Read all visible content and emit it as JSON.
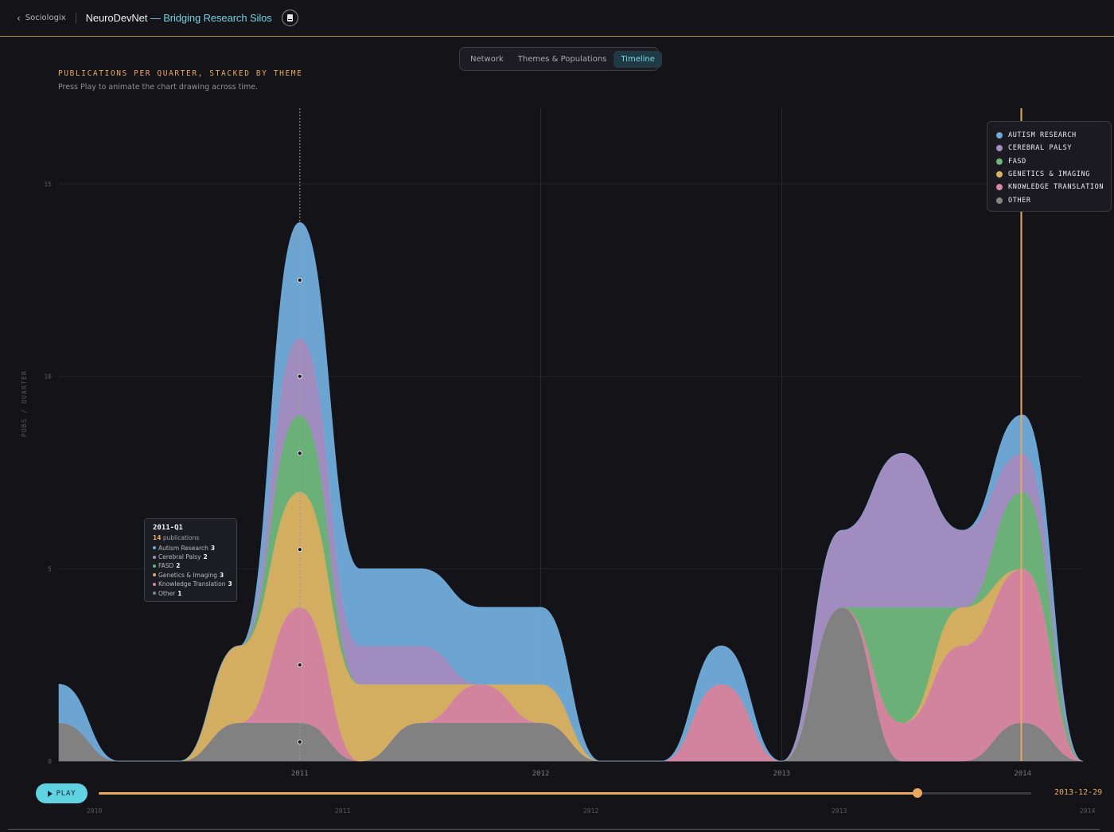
{
  "header": {
    "back_label": "Sociologix",
    "title_main": "NeuroDevNet",
    "title_sub": "— Bridging Research Silos"
  },
  "tabs": [
    {
      "label": "Network",
      "active": false
    },
    {
      "label": "Themes & Populations",
      "active": false
    },
    {
      "label": "Timeline",
      "active": true
    }
  ],
  "colors": {
    "autism": "#6fa8d6",
    "cerebral": "#a48fc4",
    "fasd": "#6cb47a",
    "genetics": "#d8b162",
    "knowledge": "#d687a2",
    "other": "#848484",
    "accent": "#e8a95f",
    "cyan": "#5fd3e2"
  },
  "chart_data": {
    "type": "area",
    "title": "PUBLICATIONS PER QUARTER, STACKED BY THEME",
    "subtitle": "Press Play to animate the chart drawing across time.",
    "ylabel": "PUBS / QUARTER",
    "yticks": [
      0,
      5,
      10,
      15
    ],
    "ylim": [
      0,
      15
    ],
    "x_ticks": [
      "2011",
      "2012",
      "2013",
      "2014"
    ],
    "x": [
      "2010-Q1",
      "2010-Q2",
      "2010-Q3",
      "2010-Q4",
      "2011-Q1",
      "2011-Q2",
      "2011-Q3",
      "2011-Q4",
      "2012-Q1",
      "2012-Q2",
      "2012-Q3",
      "2012-Q4",
      "2013-Q1",
      "2013-Q2",
      "2013-Q3",
      "2013-Q4",
      "2014-Q1",
      "2014-Q2"
    ],
    "series": [
      {
        "name": "Other",
        "key": "other",
        "values": [
          1,
          0,
          0,
          1,
          1,
          0,
          1,
          1,
          1,
          0,
          0,
          0,
          0,
          4,
          0,
          0,
          1,
          0
        ]
      },
      {
        "name": "Knowledge Translation",
        "key": "knowledge",
        "values": [
          0,
          0,
          0,
          0,
          3,
          0,
          0,
          1,
          0,
          0,
          0,
          2,
          0,
          0,
          1,
          3,
          4,
          0
        ]
      },
      {
        "name": "Genetics & Imaging",
        "key": "genetics",
        "values": [
          0,
          0,
          0,
          2,
          3,
          2,
          1,
          0,
          1,
          0,
          0,
          0,
          0,
          0,
          0,
          1,
          0,
          0
        ]
      },
      {
        "name": "FASD",
        "key": "fasd",
        "values": [
          0,
          0,
          0,
          0,
          2,
          0,
          0,
          0,
          0,
          0,
          0,
          0,
          0,
          0,
          3,
          0,
          2,
          0
        ]
      },
      {
        "name": "Cerebral Palsy",
        "key": "cerebral",
        "values": [
          0,
          0,
          0,
          0,
          2,
          1,
          1,
          0,
          0,
          0,
          0,
          0,
          0,
          2,
          4,
          2,
          1,
          0
        ]
      },
      {
        "name": "Autism Research",
        "key": "autism",
        "values": [
          1,
          0,
          0,
          0,
          3,
          2,
          2,
          2,
          2,
          0,
          0,
          1,
          0,
          0,
          0,
          0,
          1,
          0
        ]
      }
    ],
    "legend_position": "top-right",
    "highlight_quarter": "2011-Q1"
  },
  "legend": [
    {
      "label": "AUTISM RESEARCH",
      "key": "autism"
    },
    {
      "label": "CEREBRAL PALSY",
      "key": "cerebral"
    },
    {
      "label": "FASD",
      "key": "fasd"
    },
    {
      "label": "GENETICS & IMAGING",
      "key": "genetics"
    },
    {
      "label": "KNOWLEDGE TRANSLATION",
      "key": "knowledge"
    },
    {
      "label": "OTHER",
      "key": "other"
    }
  ],
  "tooltip": {
    "title": "2011-Q1",
    "total": "14",
    "total_suffix": "publications",
    "rows": [
      {
        "label": "Autism Research",
        "value": "3",
        "key": "autism"
      },
      {
        "label": "Cerebral Palsy",
        "value": "2",
        "key": "cerebral"
      },
      {
        "label": "FASD",
        "value": "2",
        "key": "fasd"
      },
      {
        "label": "Genetics & Imaging",
        "value": "3",
        "key": "genetics"
      },
      {
        "label": "Knowledge Translation",
        "value": "3",
        "key": "knowledge"
      },
      {
        "label": "Other",
        "value": "1",
        "key": "other"
      }
    ]
  },
  "playback": {
    "play_label": "PLAY",
    "current_date": "2013-12-29",
    "progress": 0.878,
    "labels": [
      "2010",
      "2011",
      "2012",
      "2013",
      "2014"
    ]
  }
}
